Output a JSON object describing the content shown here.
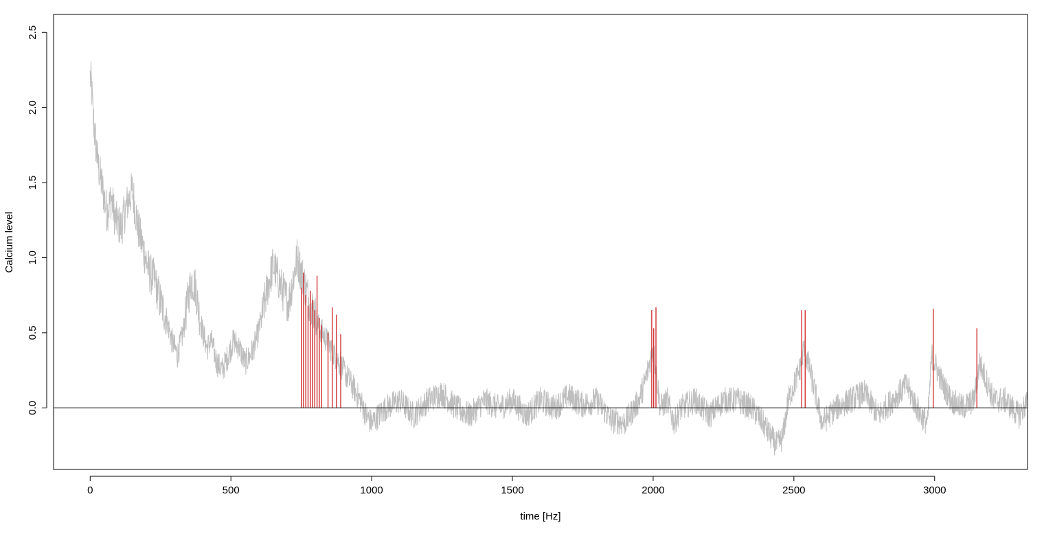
{
  "chart_data": {
    "type": "line",
    "title": "",
    "xlabel": "time [Hz]",
    "ylabel": "Calcium level",
    "xlim": [
      -130,
      3330
    ],
    "ylim": [
      -0.41,
      2.62
    ],
    "x_ticks": [
      0,
      500,
      1000,
      1500,
      2000,
      2500,
      3000
    ],
    "x_tick_labels": [
      "0",
      "500",
      "1000",
      "1500",
      "2000",
      "2500",
      "3000"
    ],
    "y_ticks": [
      0.0,
      0.5,
      1.0,
      1.5,
      2.0,
      2.5
    ],
    "y_tick_labels": [
      "0.0",
      "0.5",
      "1.0",
      "1.5",
      "2.0",
      "2.5"
    ],
    "grid": false,
    "legend": "none",
    "reference_line": {
      "y": 0,
      "color": "#000000"
    },
    "series": [
      {
        "role": "trace",
        "color": "#bebebe",
        "x": [
          0,
          5,
          10,
          20,
          30,
          45,
          60,
          75,
          90,
          110,
          130,
          150,
          170,
          190,
          210,
          230,
          250,
          270,
          290,
          310,
          330,
          345,
          360,
          375,
          385,
          400,
          415,
          430,
          450,
          470,
          490,
          510,
          530,
          550,
          570,
          590,
          610,
          630,
          650,
          670,
          690,
          705,
          720,
          735,
          750,
          765,
          780,
          795,
          810,
          825,
          840,
          855,
          870,
          885,
          900,
          915,
          930,
          945,
          960,
          980,
          1000,
          1050,
          1100,
          1150,
          1200,
          1250,
          1300,
          1350,
          1400,
          1450,
          1500,
          1550,
          1600,
          1650,
          1700,
          1750,
          1800,
          1850,
          1900,
          1950,
          1975,
          2000,
          2010,
          2025,
          2050,
          2075,
          2100,
          2150,
          2200,
          2250,
          2300,
          2350,
          2390,
          2420,
          2440,
          2460,
          2480,
          2500,
          2520,
          2535,
          2550,
          2575,
          2600,
          2650,
          2700,
          2750,
          2800,
          2850,
          2900,
          2950,
          2975,
          2990,
          3010,
          3030,
          3060,
          3100,
          3140,
          3160,
          3180,
          3210,
          3250,
          3300,
          3330
        ],
        "y": [
          2.2,
          2.15,
          1.95,
          1.75,
          1.6,
          1.45,
          1.3,
          1.4,
          1.25,
          1.2,
          1.35,
          1.45,
          1.2,
          1.05,
          0.9,
          0.85,
          0.7,
          0.6,
          0.45,
          0.35,
          0.5,
          0.7,
          0.85,
          0.8,
          0.65,
          0.5,
          0.4,
          0.45,
          0.3,
          0.25,
          0.35,
          0.45,
          0.4,
          0.3,
          0.35,
          0.45,
          0.6,
          0.8,
          0.95,
          0.85,
          0.75,
          0.7,
          0.85,
          1.0,
          0.9,
          0.8,
          0.7,
          0.65,
          0.55,
          0.5,
          0.45,
          0.4,
          0.35,
          0.3,
          0.25,
          0.2,
          0.15,
          0.1,
          0.05,
          -0.05,
          -0.1,
          0.0,
          0.05,
          -0.05,
          0.05,
          0.1,
          0.0,
          -0.05,
          0.05,
          0.0,
          0.05,
          -0.05,
          0.05,
          0.0,
          0.08,
          0.02,
          0.05,
          -0.08,
          -0.1,
          0.05,
          0.2,
          0.4,
          0.25,
          0.0,
          0.05,
          -0.1,
          0.0,
          0.05,
          -0.05,
          0.05,
          0.05,
          0.0,
          -0.1,
          -0.2,
          -0.25,
          -0.2,
          0.05,
          0.15,
          0.25,
          0.4,
          0.3,
          0.1,
          -0.1,
          0.0,
          0.05,
          0.1,
          -0.05,
          0.05,
          0.15,
          -0.05,
          -0.1,
          0.35,
          0.25,
          0.15,
          0.05,
          0.0,
          0.05,
          0.3,
          0.2,
          0.05,
          0.05,
          -0.05,
          0.05
        ]
      },
      {
        "role": "events",
        "color": "#cc1f1f",
        "x": [
          750,
          758,
          766,
          774,
          782,
          790,
          798,
          806,
          814,
          822,
          845,
          860,
          875,
          890,
          1995,
          2002,
          2010,
          2528,
          2540,
          2995,
          3150
        ],
        "y": [
          0.8,
          0.9,
          0.75,
          0.68,
          0.78,
          0.72,
          0.65,
          0.88,
          0.6,
          0.55,
          0.5,
          0.67,
          0.62,
          0.49,
          0.65,
          0.53,
          0.67,
          0.65,
          0.65,
          0.66,
          0.53
        ]
      }
    ]
  }
}
